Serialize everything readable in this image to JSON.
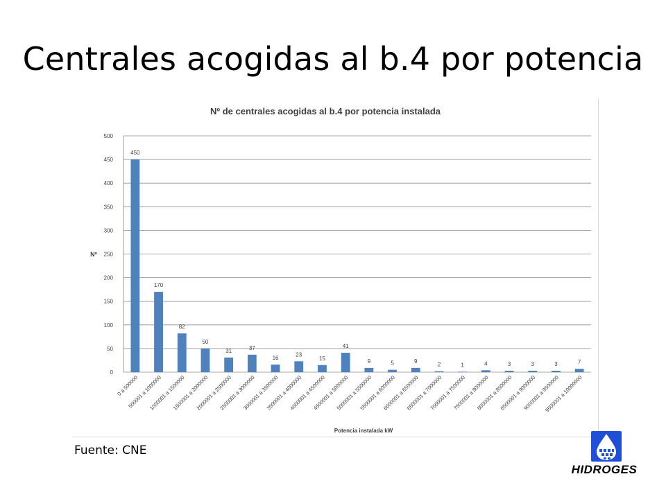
{
  "slide": {
    "title": "Centrales acogidas al b.4 por potencia",
    "source": "Fuente: CNE"
  },
  "logo": {
    "name": "HIDROGES",
    "icon": "water-drop-logo-icon",
    "color": "#1f4fd6"
  },
  "chart_data": {
    "type": "bar",
    "title": "Nº de centrales acogidas al b.4 por potencia instalada",
    "xlabel": "Potencia instalada kW",
    "ylabel": "Nº",
    "ylim": [
      0,
      500
    ],
    "yticks": [
      0,
      50,
      100,
      150,
      200,
      250,
      300,
      350,
      400,
      450,
      500
    ],
    "grid": true,
    "legend": "none",
    "bar_color": "#4f81bd",
    "categories": [
      "0 a 500000",
      "500001 a 1000000",
      "1000001 a 1500000",
      "1500001 a 2000000",
      "2000001 a 2500000",
      "2500001 a 3000000",
      "3000001 a 3500000",
      "3500001 a 4000000",
      "4000001 a 4500000",
      "4500001 a 5000000",
      "5000001 a 5500000",
      "5500001 a 6000000",
      "6000001 a 6500000",
      "6500001 a 7000000",
      "7000001 a 7500000",
      "7500001 a 8000000",
      "8000001 a 8500000",
      "8500001 a 9000000",
      "9000001 a 9500000",
      "9500001 a 10000000"
    ],
    "values": [
      450,
      170,
      82,
      50,
      31,
      37,
      16,
      23,
      15,
      41,
      9,
      5,
      9,
      2,
      1,
      4,
      3,
      3,
      3,
      7
    ]
  }
}
